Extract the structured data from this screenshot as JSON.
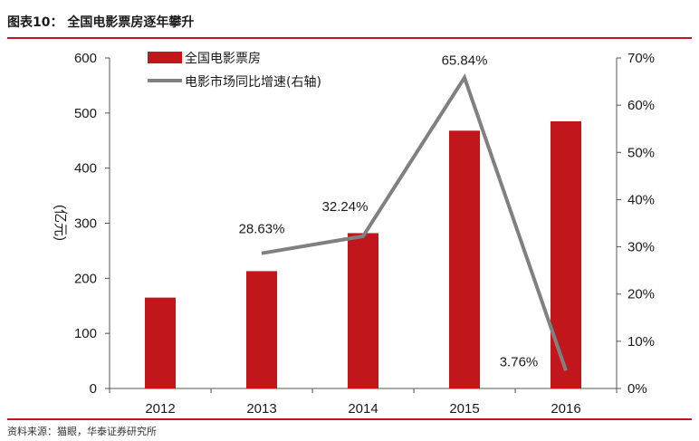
{
  "header": {
    "title": "图表10：  全国电影票房逐年攀升"
  },
  "footer": {
    "source": "资料来源：猫眼，华泰证券研究所"
  },
  "colors": {
    "accent": "#c0161c",
    "bar": "#c0161c",
    "line": "#808080"
  },
  "chart_data": {
    "type": "bar",
    "title": "全国电影票房逐年攀升",
    "categories": [
      "2012",
      "2013",
      "2014",
      "2015",
      "2016"
    ],
    "ylabel": "(亿元)",
    "ylim": [
      0,
      600
    ],
    "yticks": [
      "0",
      "100",
      "200",
      "300",
      "400",
      "500",
      "600"
    ],
    "y2lim": [
      0,
      70
    ],
    "y2ticks": [
      "0%",
      "10%",
      "20%",
      "30%",
      "40%",
      "50%",
      "60%",
      "70%"
    ],
    "legend_position": "top-left",
    "series": [
      {
        "name": "全国电影票房",
        "type": "bar",
        "axis": "left",
        "values": [
          165,
          213,
          282,
          468,
          485
        ]
      },
      {
        "name": "电影市场同比增速(右轴)",
        "type": "line",
        "axis": "right",
        "values": [
          null,
          28.63,
          32.24,
          65.84,
          3.76
        ],
        "labels": [
          "",
          "28.63%",
          "32.24%",
          "65.84%",
          "3.76%"
        ]
      }
    ]
  }
}
